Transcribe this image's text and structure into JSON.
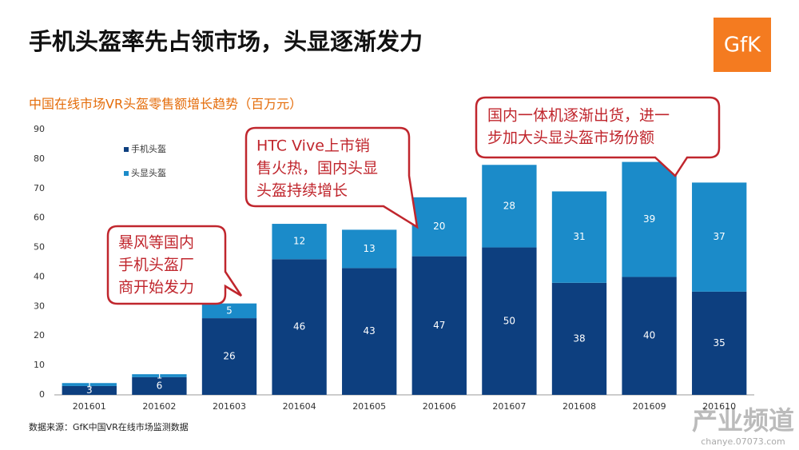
{
  "chart_data": {
    "type": "stacked-bar",
    "title": "手机头盔率先占领市场，头显逐渐发力",
    "subtitle": "中国在线市场VR头盔零售额增长趋势（百万元）",
    "source": "数据来源：GfK中国VR在线市场监测数据",
    "logo": "GfK",
    "watermark": {
      "title": "产业频道",
      "url": "chanye.07073.com"
    },
    "categories": [
      "201601",
      "201602",
      "201603",
      "201604",
      "201605",
      "201606",
      "201607",
      "201608",
      "201609",
      "201610"
    ],
    "series": [
      {
        "name": "手机头盔",
        "color": "#0d3f7f",
        "values": [
          3,
          6,
          26,
          46,
          43,
          47,
          50,
          38,
          40,
          35
        ]
      },
      {
        "name": "头显头盔",
        "color": "#1b8bc9",
        "values": [
          1,
          1,
          5,
          12,
          13,
          20,
          28,
          31,
          39,
          37
        ]
      }
    ],
    "ylim": [
      0,
      90
    ],
    "yticks": [
      0,
      10,
      20,
      30,
      40,
      50,
      60,
      70,
      80,
      90
    ],
    "legend": "upper left",
    "annotations": [
      {
        "lines": [
          "暴风等国内",
          "手机头盔厂",
          "商开始发力"
        ]
      },
      {
        "lines": [
          "HTC Vive上市销",
          "售火热，国内头显",
          "头盔持续增长"
        ]
      },
      {
        "lines": [
          "国内一体机逐渐出货，进一",
          "步加大头显头盔市场份额"
        ]
      }
    ]
  }
}
